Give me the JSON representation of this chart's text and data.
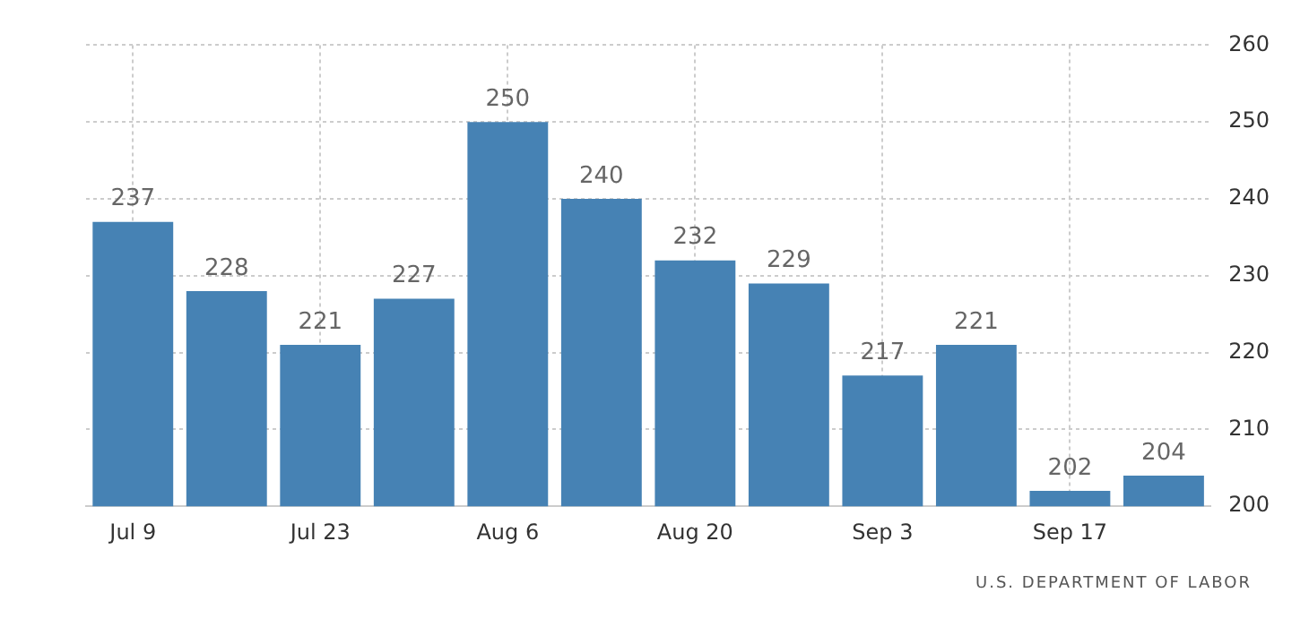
{
  "chart_data": {
    "type": "bar",
    "categories": [
      "Jul 9",
      null,
      "Jul 23",
      null,
      "Aug 6",
      null,
      "Aug 20",
      null,
      "Sep 3",
      null,
      "Sep 17",
      null
    ],
    "values": [
      237,
      228,
      221,
      227,
      250,
      240,
      232,
      229,
      217,
      221,
      202,
      204
    ],
    "color": "#4682b4",
    "ylim": [
      200,
      260
    ],
    "yticks": [
      200,
      210,
      220,
      230,
      240,
      250,
      260
    ],
    "grid": true,
    "data_labels": true,
    "annotations": [
      "U.S. DEPARTMENT OF LABOR"
    ]
  }
}
